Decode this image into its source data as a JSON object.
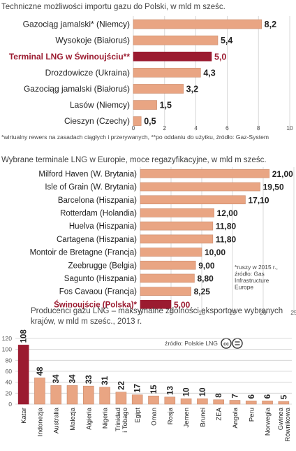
{
  "colors": {
    "bar": "#e9a583",
    "bar_edge": "#c98a6c",
    "highlight_bar": "#9b1b30",
    "highlight_text": "#9b1b30",
    "grid": "#cfcfcf",
    "text": "#222222",
    "muted": "#555555"
  },
  "chart_data": [
    {
      "type": "bar",
      "orientation": "horizontal",
      "title": "Techniczne możliwości importu gazu do Polski, w mld m sześc.",
      "categories": [
        "Gazociąg jamalski* (Niemcy)",
        "Wysokoje (Białoruś)",
        "Terminal LNG w Świnoujściu**",
        "Drozdowicze (Ukraina)",
        "Gazociąg jamalski (Białoruś)",
        "Lasów (Niemcy)",
        "Cieszyn (Czechy)"
      ],
      "values": [
        8.2,
        5.4,
        5.0,
        4.3,
        3.2,
        1.5,
        0.5
      ],
      "value_labels": [
        "8,2",
        "5,4",
        "5,0",
        "4,3",
        "3,2",
        "1,5",
        "0,5"
      ],
      "highlight_index": 2,
      "xlim": [
        0,
        10
      ],
      "xticks": [
        0,
        2,
        4,
        6,
        8,
        10
      ],
      "footnote": "*wirtualny rewers na zasadach ciągłych i przerywanych, **po oddaniu do użytku, źródło: Gaz-System"
    },
    {
      "type": "bar",
      "orientation": "horizontal",
      "title": "Wybrane terminale LNG w Europie, moce regazyfikacyjne, w mld m sześc.",
      "categories": [
        "Milford Haven (W. Brytania)",
        "Isle of Grain (W. Brytania)",
        "Barcelona (Hiszpania)",
        "Rotterdam (Holandia)",
        "Huelva (Hiszpania)",
        "Cartagena (Hiszpania)",
        "Montoir de Bretagne (Francja)",
        "Zeebrugge (Belgia)",
        "Sagunto (Hiszpania)",
        "Fos Cavaou (Francja)",
        "Świnoujście (Polska)*"
      ],
      "values": [
        21.0,
        19.5,
        17.1,
        12.0,
        11.8,
        11.8,
        10.0,
        9.0,
        8.8,
        8.25,
        5.0
      ],
      "value_labels": [
        "21,00",
        "19,50",
        "17,10",
        "12,00",
        "11,80",
        "11,80",
        "10,00",
        "9,00",
        "8,80",
        "8,25",
        "5,00"
      ],
      "highlight_index": 10,
      "xlim": [
        0,
        25
      ],
      "xticks": [
        0,
        5,
        10,
        15,
        20,
        25
      ],
      "note": [
        "*ruszy w 2015 r.,",
        "źródło: Gas",
        "Infrastructure",
        "Europe"
      ]
    },
    {
      "type": "bar",
      "orientation": "vertical",
      "title": [
        "Producenci gazu LNG – maksymalne zdolności eksportowe wybranych",
        "krajów, w mld m sześc., 2013 r."
      ],
      "source": "źródło: Polskie LNG",
      "license_badge": "cc-by-nd-icon",
      "categories": [
        "Katar",
        "Indonezja",
        "Australia",
        "Malezja",
        "Algieria",
        "Nigeria",
        "Trinidad i Tobago",
        "Egipt",
        "Oman",
        "Rosja",
        "Jemen",
        "Brunei",
        "ZEA",
        "Angola",
        "Peru",
        "Norwegia",
        "Gwinea Równikowa"
      ],
      "category_lines": [
        [
          "Katar"
        ],
        [
          "Indonezja"
        ],
        [
          "Australia"
        ],
        [
          "Malezja"
        ],
        [
          "Algieria"
        ],
        [
          "Nigeria"
        ],
        [
          "Trinidad",
          "i Tobago"
        ],
        [
          "Egipt"
        ],
        [
          "Oman"
        ],
        [
          "Rosja"
        ],
        [
          "Jemen"
        ],
        [
          "Brunei"
        ],
        [
          "ZEA"
        ],
        [
          "Angola"
        ],
        [
          "Peru"
        ],
        [
          "Norwegia"
        ],
        [
          "Gwinea",
          "Równikowa"
        ]
      ],
      "values": [
        108,
        48,
        34,
        34,
        33,
        31,
        22,
        17,
        15,
        13,
        10,
        10,
        8,
        7,
        6,
        6,
        5
      ],
      "value_labels": [
        "108",
        "48",
        "34",
        "34",
        "33",
        "31",
        "22",
        "17",
        "15",
        "13",
        "10",
        "10",
        "8",
        "7",
        "6",
        "6",
        "5"
      ],
      "highlight_index": 0,
      "ylim": [
        0,
        120
      ],
      "yticks": [
        0,
        20,
        40,
        60,
        80,
        100,
        120
      ]
    }
  ]
}
